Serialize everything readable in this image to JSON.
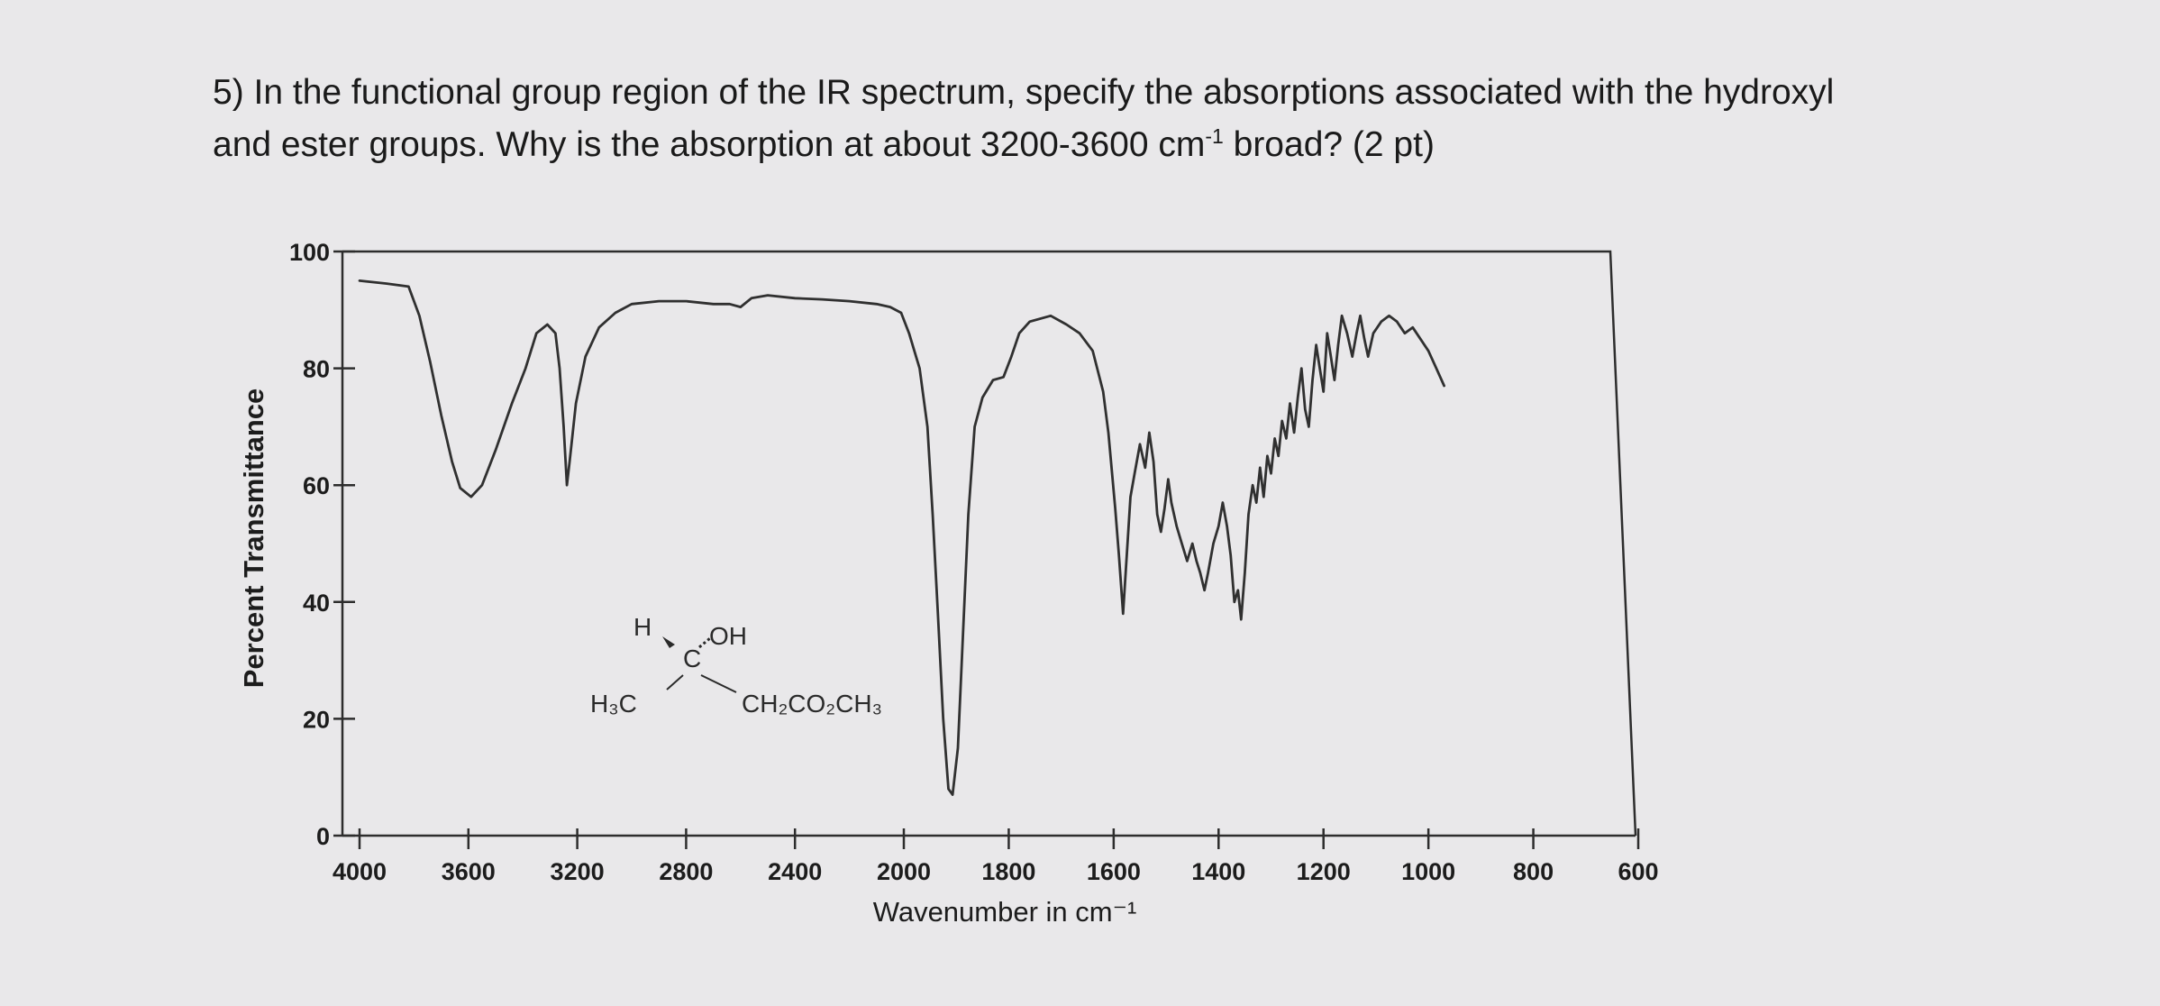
{
  "question": {
    "line1": "5) In the functional group region of the IR spectrum, specify the absorptions associated with the hydroxyl",
    "line2_before": "and ester groups.  Why is the absorption at about 3200-3600 cm",
    "line2_sup": "-1",
    "line2_after": " broad? (2 pt)"
  },
  "chart_data": {
    "type": "line",
    "title": "",
    "xlabel": "Wavenumber in cm⁻¹",
    "ylabel": "Percent Transmittance",
    "x_ticks": [
      "4000",
      "3600",
      "3200",
      "2800",
      "2400",
      "2000",
      "1800",
      "1600",
      "1400",
      "1200",
      "1000",
      "800",
      "600"
    ],
    "y_ticks": [
      "0",
      "20",
      "40",
      "60",
      "80",
      "100"
    ],
    "ylim": [
      0,
      100
    ],
    "grid": false,
    "legend": "none",
    "series": [
      {
        "points": [
          [
            4000,
            95
          ],
          [
            3900,
            94.5
          ],
          [
            3820,
            94
          ],
          [
            3780,
            89
          ],
          [
            3740,
            81
          ],
          [
            3700,
            72
          ],
          [
            3660,
            64
          ],
          [
            3630,
            59.5
          ],
          [
            3590,
            58
          ],
          [
            3550,
            60
          ],
          [
            3500,
            66
          ],
          [
            3440,
            74
          ],
          [
            3390,
            80
          ],
          [
            3350,
            86
          ],
          [
            3310,
            87.5
          ],
          [
            3280,
            86
          ],
          [
            3265,
            80
          ],
          [
            3250,
            70
          ],
          [
            3238,
            60
          ],
          [
            3228,
            64
          ],
          [
            3205,
            74
          ],
          [
            3170,
            82
          ],
          [
            3120,
            87
          ],
          [
            3060,
            89.5
          ],
          [
            3000,
            91
          ],
          [
            2900,
            91.5
          ],
          [
            2800,
            91.5
          ],
          [
            2700,
            91
          ],
          [
            2640,
            91
          ],
          [
            2600,
            90.5
          ],
          [
            2560,
            92
          ],
          [
            2500,
            92.5
          ],
          [
            2400,
            92
          ],
          [
            2300,
            91.8
          ],
          [
            2200,
            91.5
          ],
          [
            2100,
            91
          ],
          [
            2050,
            90.5
          ],
          [
            2010,
            89.5
          ],
          [
            1990,
            86
          ],
          [
            1970,
            80
          ],
          [
            1955,
            70
          ],
          [
            1945,
            55
          ],
          [
            1935,
            38
          ],
          [
            1925,
            20
          ],
          [
            1915,
            8
          ],
          [
            1907,
            7
          ],
          [
            1897,
            15
          ],
          [
            1887,
            35
          ],
          [
            1877,
            55
          ],
          [
            1865,
            70
          ],
          [
            1850,
            75
          ],
          [
            1830,
            78
          ],
          [
            1810,
            78.5
          ],
          [
            1795,
            82
          ],
          [
            1780,
            86
          ],
          [
            1760,
            88
          ],
          [
            1720,
            89
          ],
          [
            1690,
            87.5
          ],
          [
            1665,
            86
          ],
          [
            1640,
            83
          ],
          [
            1620,
            76
          ],
          [
            1610,
            69
          ],
          [
            1603,
            62
          ],
          [
            1597,
            56
          ],
          [
            1590,
            48
          ],
          [
            1582,
            38
          ],
          [
            1575,
            48
          ],
          [
            1568,
            58
          ],
          [
            1560,
            62
          ],
          [
            1550,
            67
          ],
          [
            1540,
            63
          ],
          [
            1532,
            69
          ],
          [
            1524,
            64
          ],
          [
            1517,
            55
          ],
          [
            1510,
            52
          ],
          [
            1503,
            56
          ],
          [
            1496,
            61
          ],
          [
            1490,
            57
          ],
          [
            1480,
            53
          ],
          [
            1470,
            50
          ],
          [
            1460,
            47
          ],
          [
            1450,
            50
          ],
          [
            1442,
            47
          ],
          [
            1435,
            45
          ],
          [
            1427,
            42
          ],
          [
            1420,
            45
          ],
          [
            1410,
            50
          ],
          [
            1400,
            53
          ],
          [
            1392,
            57
          ],
          [
            1384,
            53
          ],
          [
            1377,
            48
          ],
          [
            1370,
            40
          ],
          [
            1363,
            42
          ],
          [
            1357,
            37
          ],
          [
            1350,
            45
          ],
          [
            1343,
            55
          ],
          [
            1335,
            60
          ],
          [
            1328,
            57
          ],
          [
            1321,
            63
          ],
          [
            1314,
            58
          ],
          [
            1307,
            65
          ],
          [
            1300,
            62
          ],
          [
            1293,
            68
          ],
          [
            1286,
            65
          ],
          [
            1279,
            71
          ],
          [
            1271,
            68
          ],
          [
            1264,
            74
          ],
          [
            1256,
            69
          ],
          [
            1249,
            75
          ],
          [
            1242,
            80
          ],
          [
            1235,
            73
          ],
          [
            1228,
            70
          ],
          [
            1221,
            78
          ],
          [
            1214,
            84
          ],
          [
            1207,
            80
          ],
          [
            1200,
            76
          ],
          [
            1193,
            86
          ],
          [
            1186,
            82
          ],
          [
            1179,
            78
          ],
          [
            1172,
            84
          ],
          [
            1165,
            89
          ],
          [
            1155,
            86
          ],
          [
            1145,
            82
          ],
          [
            1137,
            86
          ],
          [
            1130,
            89
          ],
          [
            1122,
            85
          ],
          [
            1115,
            82
          ],
          [
            1105,
            86
          ],
          [
            1090,
            88
          ],
          [
            1075,
            89
          ],
          [
            1060,
            88
          ],
          [
            1045,
            86
          ],
          [
            1030,
            87
          ],
          [
            1015,
            85
          ],
          [
            1000,
            83
          ],
          [
            985,
            80
          ],
          [
            970,
            77
          ]
        ]
      }
    ],
    "molecule": {
      "top_left": "H",
      "top_right": "OH",
      "center": "C",
      "bottom_left": "H₃C",
      "bottom_right": "CH₂CO₂CH₃"
    }
  }
}
